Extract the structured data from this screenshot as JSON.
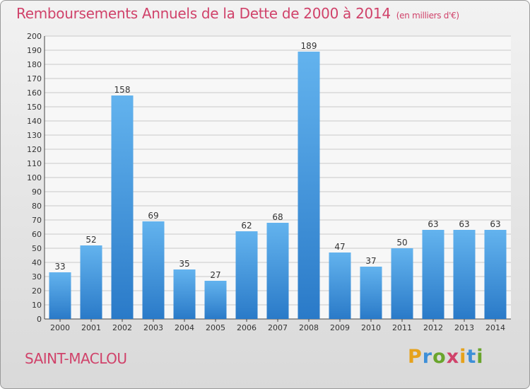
{
  "header": {
    "title": "Remboursements Annuels de la Dette de 2000 à 2014",
    "subtitle": "(en milliers d'€)"
  },
  "footer": {
    "commune": "SAINT-MACLOU",
    "logo_text": "Proxiti"
  },
  "colors": {
    "title": "#d0426a",
    "bar_light": "#63b3ee",
    "bar_dark": "#2a7ac8",
    "grid": "#c8c8c8"
  },
  "chart_data": {
    "type": "bar",
    "title": "Remboursements Annuels de la Dette de 2000 à 2014",
    "categories": [
      "2000",
      "2001",
      "2002",
      "2003",
      "2004",
      "2005",
      "2006",
      "2007",
      "2008",
      "2009",
      "2010",
      "2011",
      "2012",
      "2013",
      "2014"
    ],
    "values": [
      33,
      52,
      158,
      69,
      35,
      27,
      62,
      68,
      189,
      47,
      37,
      50,
      63,
      63,
      63
    ],
    "ylim": [
      0,
      200
    ],
    "ytick_step": 10,
    "grid": true
  }
}
